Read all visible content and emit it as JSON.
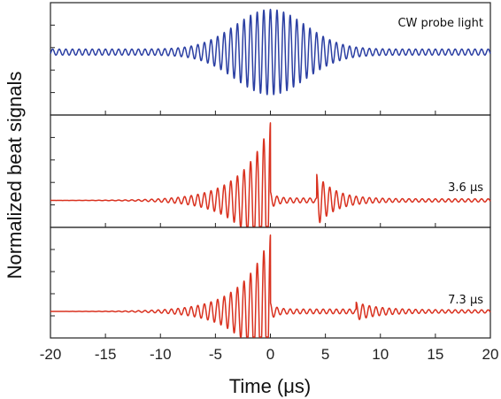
{
  "chart_data": {
    "type": "line",
    "title": "",
    "xlabel": "Time (μs)",
    "ylabel": "Normalized beat signals",
    "xlim": [
      -20,
      20
    ],
    "x_ticks": [
      "-20",
      "-15",
      "-10",
      "-5",
      "0",
      "5",
      "10",
      "15",
      "20"
    ],
    "grid": false,
    "panels": [
      {
        "annotation": "CW probe light",
        "color": "#2b3fa3",
        "waveform": "symmetric-envelope",
        "carrier_period_us": 0.6,
        "peak_at_us": 0,
        "peak_amplitude": 1.0,
        "baseline_amplitude": 0.07,
        "envelope_width_us": 4.5
      },
      {
        "annotation": "3.6 μs",
        "color": "#d9311f",
        "waveform": "rising-then-cut",
        "carrier_period_us": 0.6,
        "peak_at_us": 0,
        "peak_amplitude": 1.0,
        "rise_time_constant_us": 2.6,
        "echo_start_us": 4.2,
        "echo_amplitude": 0.32,
        "echo_decay_us": 1.6
      },
      {
        "annotation": "7.3 μs",
        "color": "#d9311f",
        "waveform": "rising-then-cut",
        "carrier_period_us": 0.6,
        "peak_at_us": 0,
        "peak_amplitude": 1.0,
        "rise_time_constant_us": 2.6,
        "echo_start_us": 7.8,
        "echo_amplitude": 0.1,
        "echo_decay_us": 2.0
      }
    ]
  }
}
